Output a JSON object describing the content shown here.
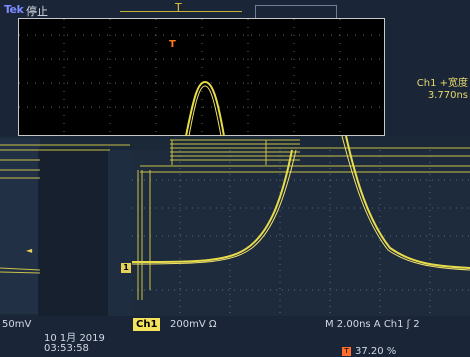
{
  "header": {
    "brand": "Tek",
    "status": "停止",
    "trigger_position_marker": "T"
  },
  "zoom_view": {
    "trigger_marker": "T"
  },
  "measurement": {
    "label": "Ch1 +宽度",
    "value": "3.770ns"
  },
  "main_view": {
    "reference_marker": "1",
    "left_marker": "◄"
  },
  "footer": {
    "left_scale": "50mV",
    "channel_badge": "Ch1",
    "channel_scale": "200mV Ω",
    "timebase": "M 2.00ns  A  Ch1  ʃ  2",
    "date": "10 1月  2019",
    "time": "03:53:58",
    "trigger_percent_badge": "T",
    "trigger_percent": "37.20 %"
  }
}
